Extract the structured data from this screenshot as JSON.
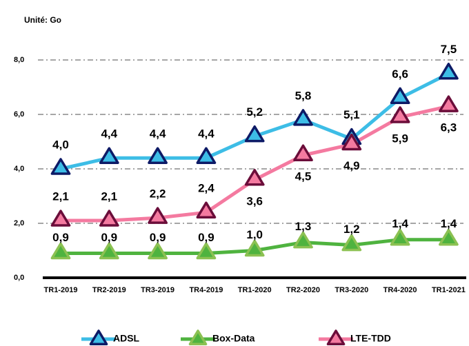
{
  "chart_data": {
    "type": "line",
    "subtitle": "Unité: Go",
    "categories": [
      "TR1-2019",
      "TR2-2019",
      "TR3-2019",
      "TR4-2019",
      "TR1-2020",
      "TR2-2020",
      "TR3-2020",
      "TR4-2020",
      "TR1-2021"
    ],
    "series": [
      {
        "name": "ADSL",
        "color": "#3dbde6",
        "marker_color": "#0d1a66",
        "values": [
          4.0,
          4.4,
          4.4,
          4.4,
          5.2,
          5.8,
          5.1,
          6.6,
          7.5
        ],
        "value_labels": [
          "4,0",
          "4,4",
          "4,4",
          "4,4",
          "5,2",
          "5,8",
          "5,1",
          "6,6",
          "7,5"
        ]
      },
      {
        "name": "Box-Data",
        "color": "#4fb33f",
        "marker_color": "#8cc152",
        "values": [
          0.9,
          0.9,
          0.9,
          0.9,
          1.0,
          1.3,
          1.2,
          1.4,
          1.4
        ],
        "value_labels": [
          "0,9",
          "0,9",
          "0,9",
          "0,9",
          "1,0",
          "1,3",
          "1,2",
          "1,4",
          "1,4"
        ]
      },
      {
        "name": "LTE-TDD",
        "color": "#f47aa0",
        "marker_color": "#6b0d3a",
        "values": [
          2.1,
          2.1,
          2.2,
          2.4,
          3.6,
          4.5,
          4.9,
          5.9,
          6.3
        ],
        "value_labels": [
          "2,1",
          "2,1",
          "2,2",
          "2,4",
          "3,6",
          "4,5",
          "4,9",
          "5,9",
          "6,3"
        ]
      }
    ],
    "ylim": [
      0,
      8
    ],
    "yticks": [
      {
        "value": 0,
        "label": "0,0"
      },
      {
        "value": 2,
        "label": "2,0"
      },
      {
        "value": 4,
        "label": "4,0"
      },
      {
        "value": 6,
        "label": "6,0"
      },
      {
        "value": 8,
        "label": "8,0"
      }
    ],
    "grid": true,
    "legend": "bottom"
  }
}
